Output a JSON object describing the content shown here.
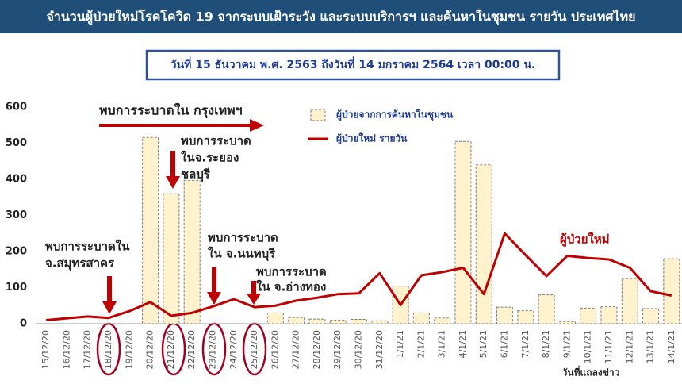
{
  "chart_data": {
    "type": "bar-line",
    "title": "จำนวนผู้ป่วยใหม่โรคโควิด 19 จากระบบเฝ้าระวัง และระบบบริการฯ และค้นหาในชุมชน รายวัน ประเทศไทย",
    "subtitle": "วันที่ 15 ธันวาคม พ.ศ. 2563 ถึงวันที่ 14 มกราคม 2564 เวลา 00:00 น.",
    "x_label": "วันที่แถลงข่าว",
    "categories": [
      "15/12/20",
      "16/12/20",
      "17/12/20",
      "18/12/20",
      "19/12/20",
      "20/12/20",
      "21/12/20",
      "22/12/20",
      "23/12/20",
      "24/12/20",
      "25/12/20",
      "26/12/20",
      "27/12/20",
      "28/12/20",
      "29/12/20",
      "30/12/20",
      "31/12/20",
      "1/1/21",
      "2/1/21",
      "3/1/21",
      "4/1/21",
      "5/1/21",
      "6/1/21",
      "7/1/21",
      "8/1/21",
      "9/1/21",
      "10/1/21",
      "11/1/21",
      "12/1/21",
      "13/1/21",
      "14/1/21"
    ],
    "series": [
      {
        "name": "ผู้ป่วยจากการค้นหาในชุมชน",
        "type": "bar",
        "color": "#fff2cc",
        "values": [
          0,
          0,
          0,
          0,
          0,
          516,
          360,
          397,
          0,
          0,
          0,
          30,
          17,
          13,
          10,
          12,
          8,
          104,
          30,
          16,
          505,
          440,
          46,
          36,
          80,
          6,
          43,
          47,
          125,
          42,
          180
        ]
      },
      {
        "name": "ผู้ป่วยใหม่ รายวัน",
        "type": "line",
        "color": "#c00000",
        "values": [
          10,
          15,
          20,
          16,
          35,
          60,
          22,
          30,
          48,
          68,
          46,
          50,
          64,
          72,
          82,
          84,
          140,
          52,
          134,
          143,
          155,
          82,
          250,
          190,
          132,
          188,
          182,
          178,
          155,
          90,
          78
        ]
      }
    ],
    "line_label": "ผู้ป่วยใหม่",
    "annotations": [
      "พบการระบาดใน กรุงเทพฯ",
      "พบการระบาด",
      "ในจ.ระยอง",
      "ชลบุรี",
      "พบการระบาดใน",
      "จ.สมุทรสาคร",
      "พบการระบาด",
      "ใน จ.นนทบุรี",
      "พบการระบาด",
      "ใน จ.อ่างทอง"
    ],
    "ylim": [
      0,
      600
    ],
    "yticks": [
      0,
      100,
      200,
      300,
      400,
      500,
      600
    ],
    "grid": false
  }
}
